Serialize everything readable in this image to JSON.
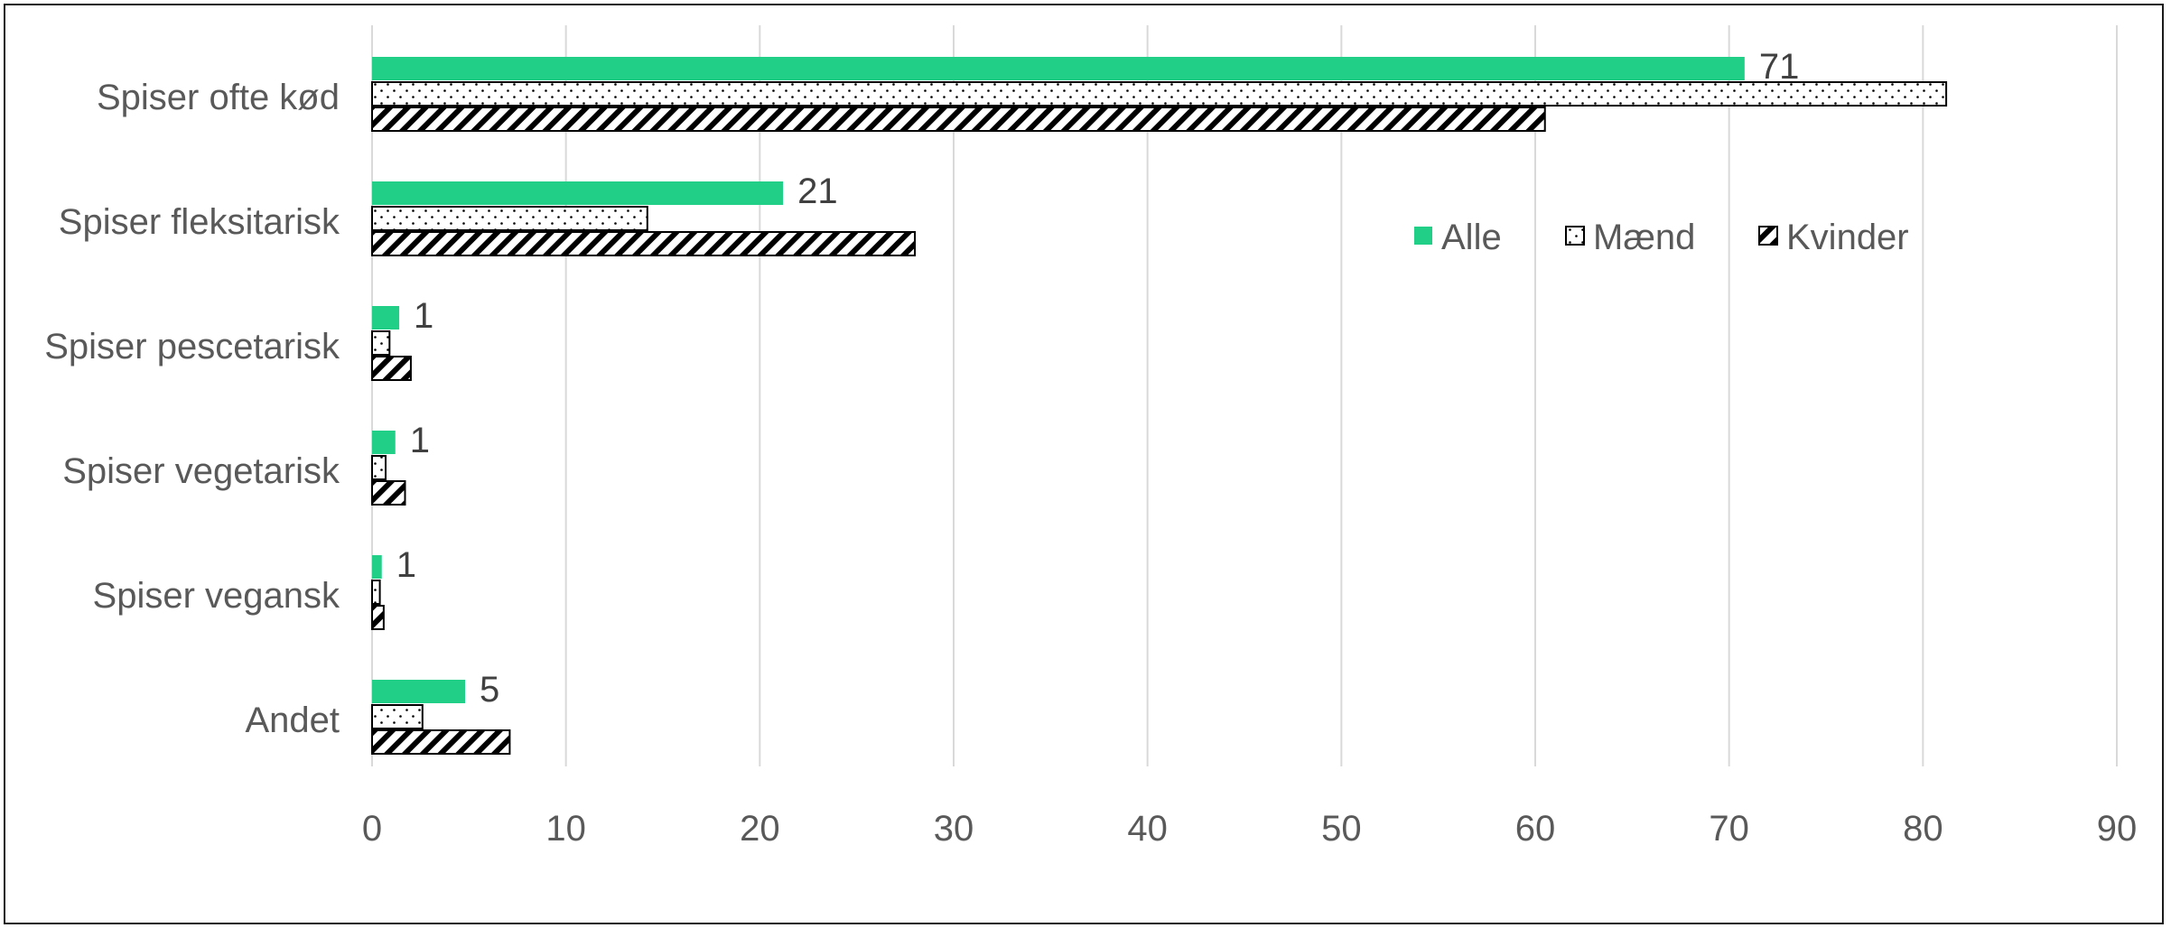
{
  "chart_data": {
    "type": "bar",
    "orientation": "horizontal",
    "categories": [
      "Spiser ofte kød",
      "Spiser fleksitarisk",
      "Spiser pescetarisk",
      "Spiser vegetarisk",
      "Spiser vegansk",
      "Andet"
    ],
    "series": [
      {
        "name": "Alle",
        "values": [
          70.8,
          21.2,
          1.4,
          1.2,
          0.5,
          4.8
        ],
        "pattern": "solid",
        "color": "#21D086"
      },
      {
        "name": "Mænd",
        "values": [
          81.2,
          14.2,
          0.9,
          0.7,
          0.4,
          2.6
        ],
        "pattern": "dots",
        "color": "#000000"
      },
      {
        "name": "Kvinder",
        "values": [
          60.5,
          28.0,
          2.0,
          1.7,
          0.6,
          7.1
        ],
        "pattern": "diagonal",
        "color": "#000000"
      }
    ],
    "data_labels": {
      "series": "Alle",
      "labels": [
        "71",
        "21",
        "1",
        "1",
        "1",
        "5"
      ]
    },
    "xlim": [
      0,
      90
    ],
    "xticks": [
      "0",
      "10",
      "20",
      "30",
      "40",
      "50",
      "60",
      "70",
      "80",
      "90"
    ],
    "grid": "vertical",
    "legend": "inside top-right",
    "title": "",
    "xlabel": "",
    "ylabel": ""
  }
}
